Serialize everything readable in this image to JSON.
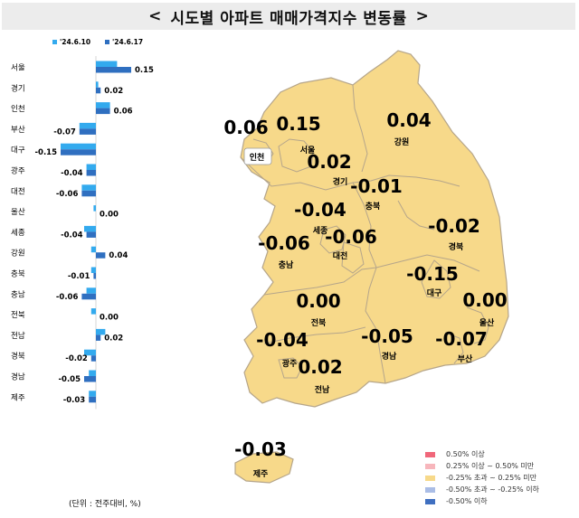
{
  "title": "시도별 아파트 매매가격지수 변동률",
  "unit_note": "(단위 : 전주대비, %)",
  "colors": {
    "prev": "#33aaee",
    "curr": "#2f6fc0",
    "map_fill": "#f7d98a",
    "map_stroke": "#b5a58a"
  },
  "legend": [
    {
      "label": "0.50% 이상",
      "color": "#f0677a"
    },
    {
      "label": "0.25% 이상 ~ 0.50% 미만",
      "color": "#f7b6bc"
    },
    {
      "label": "-0.25% 초과 ~ 0.25% 미만",
      "color": "#f7d98a"
    },
    {
      "label": "-0.50% 초과 ~ -0.25% 이하",
      "color": "#aabde6"
    },
    {
      "label": "-0.50% 이하",
      "color": "#3f6fc0"
    }
  ],
  "chart_data": [
    {
      "type": "bar",
      "orientation": "horizontal",
      "categories": [
        "서울",
        "경기",
        "인천",
        "부산",
        "대구",
        "광주",
        "대전",
        "울산",
        "세종",
        "강원",
        "충북",
        "충남",
        "전북",
        "전남",
        "경북",
        "경남",
        "제주"
      ],
      "series": [
        {
          "name": "'24.6.10",
          "values": [
            0.09,
            0.01,
            0.06,
            -0.07,
            -0.15,
            -0.04,
            -0.06,
            -0.01,
            -0.05,
            -0.02,
            -0.02,
            -0.04,
            -0.02,
            0.04,
            -0.05,
            -0.03,
            -0.03
          ]
        },
        {
          "name": "'24.6.17",
          "values": [
            0.15,
            0.02,
            0.06,
            -0.07,
            -0.15,
            -0.04,
            -0.06,
            0.0,
            -0.04,
            0.04,
            -0.01,
            -0.06,
            0.0,
            0.02,
            -0.02,
            -0.05,
            -0.03
          ]
        }
      ],
      "data_labels": [
        "0.15",
        "0.02",
        "0.06",
        "-0.07",
        "-0.15",
        "-0.04",
        "-0.06",
        "0.00",
        "-0.04",
        "0.04",
        "-0.01",
        "-0.06",
        "0.00",
        "0.02",
        "-0.02",
        "-0.05",
        "-0.03"
      ],
      "xlim": [
        -0.17,
        0.17
      ],
      "legend_position": "top"
    },
    {
      "type": "map",
      "regions": [
        {
          "name": "인천",
          "value": "0.06"
        },
        {
          "name": "서울",
          "value": "0.15"
        },
        {
          "name": "강원",
          "value": "0.04"
        },
        {
          "name": "경기",
          "value": "0.02"
        },
        {
          "name": "충북",
          "value": "-0.01"
        },
        {
          "name": "세종",
          "value": "-0.04"
        },
        {
          "name": "경북",
          "value": "-0.02"
        },
        {
          "name": "충남",
          "value": "-0.06"
        },
        {
          "name": "대전",
          "value": "-0.06"
        },
        {
          "name": "대구",
          "value": "-0.15"
        },
        {
          "name": "전북",
          "value": "0.00"
        },
        {
          "name": "울산",
          "value": "0.00"
        },
        {
          "name": "광주",
          "value": "-0.04"
        },
        {
          "name": "경남",
          "value": "-0.05"
        },
        {
          "name": "부산",
          "value": "-0.07"
        },
        {
          "name": "전남",
          "value": "0.02"
        },
        {
          "name": "제주",
          "value": "-0.03"
        }
      ]
    }
  ]
}
